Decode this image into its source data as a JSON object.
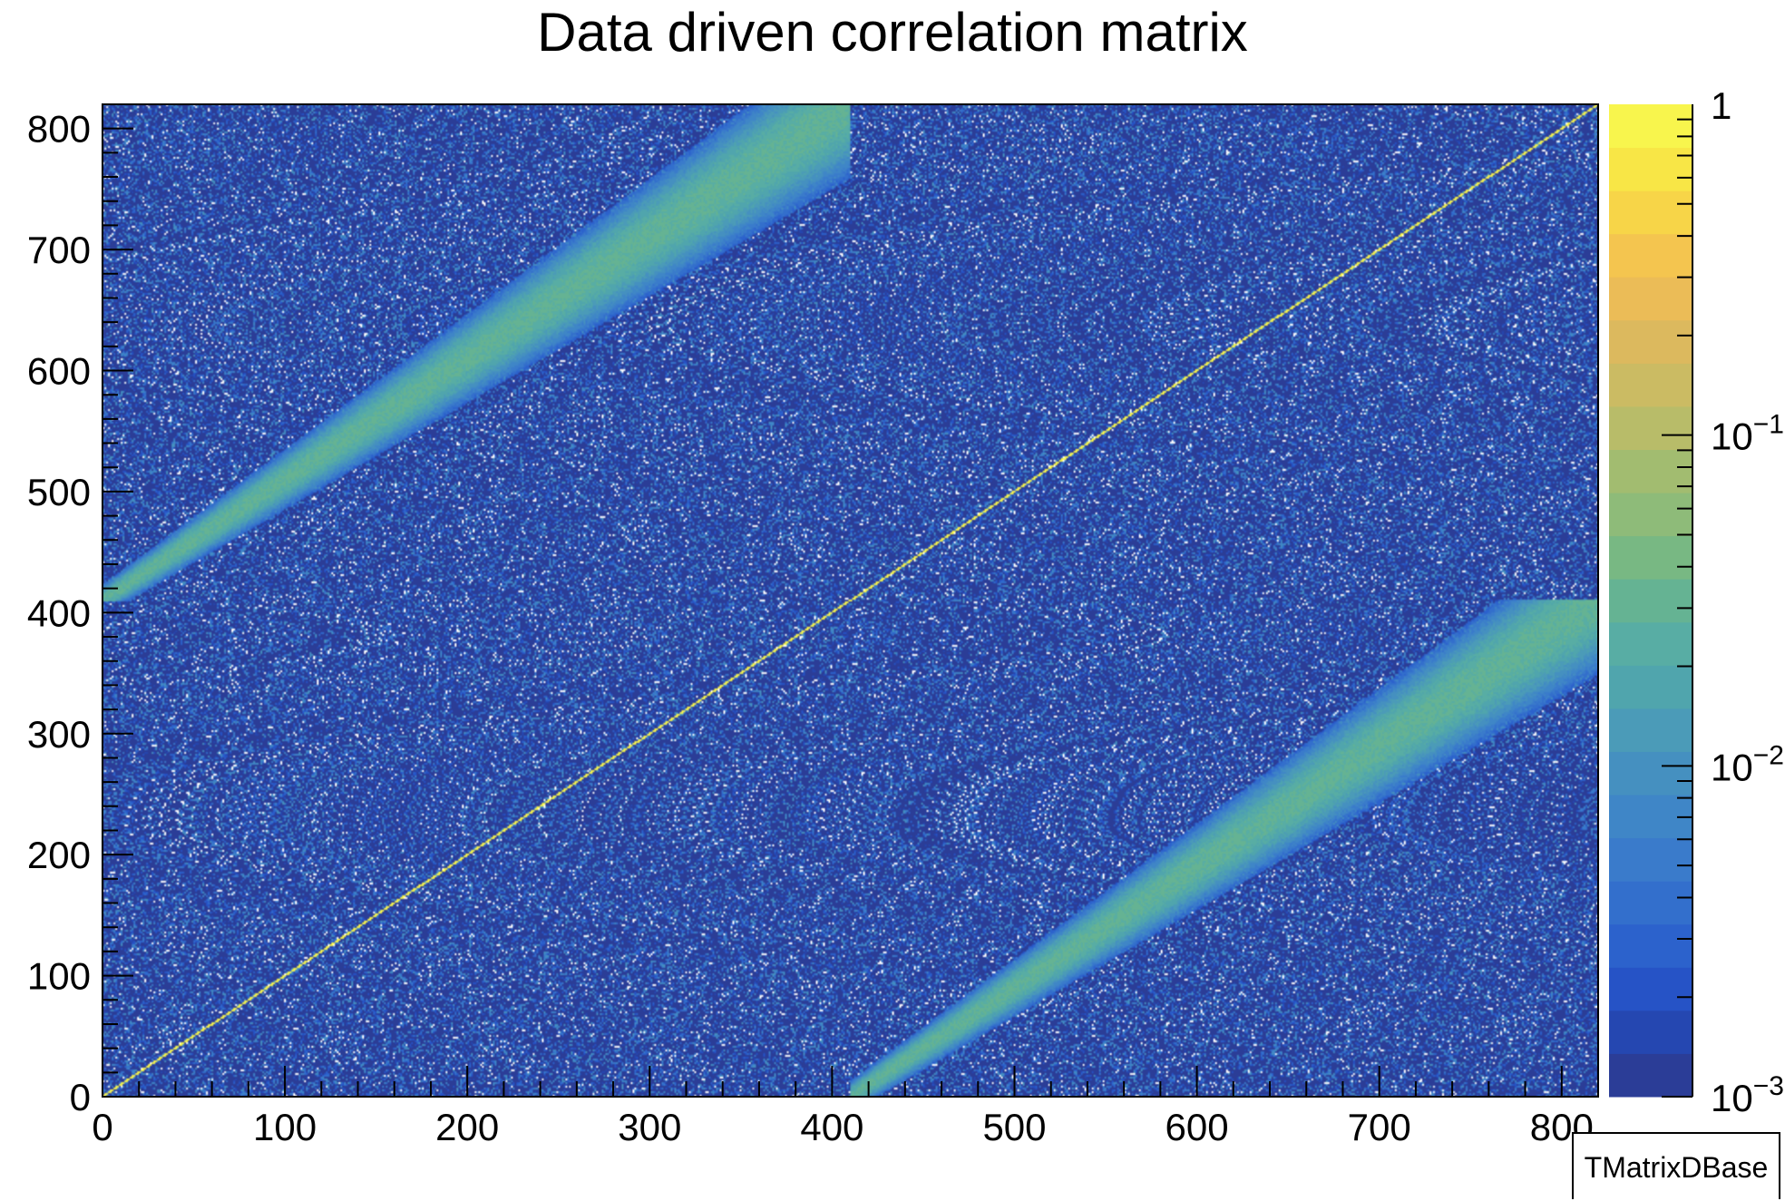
{
  "chart_data": {
    "type": "heatmap",
    "title": "Data driven correlation matrix",
    "xlabel": "",
    "ylabel": "",
    "xlim": [
      0,
      820
    ],
    "ylim": [
      0,
      820
    ],
    "x_ticks": [
      "0",
      "100",
      "200",
      "300",
      "400",
      "500",
      "600",
      "700",
      "800"
    ],
    "y_ticks": [
      "0",
      "100",
      "200",
      "300",
      "400",
      "500",
      "600",
      "700",
      "800"
    ],
    "z_scale": "log",
    "zlim": [
      0.001,
      1
    ],
    "palette_ticks": [
      {
        "value": 1,
        "base": "1",
        "exp": ""
      },
      {
        "value": 0.1,
        "base": "10",
        "exp": "−1"
      },
      {
        "value": 0.01,
        "base": "10",
        "exp": "−2"
      },
      {
        "value": 0.001,
        "base": "10",
        "exp": "−3"
      }
    ],
    "palette_colors": [
      "#2b3d97",
      "#2547b1",
      "#2653c6",
      "#2c62cc",
      "#336fcc",
      "#3a7bcb",
      "#3f86c7",
      "#4590c0",
      "#4b9bb8",
      "#50a5ad",
      "#58ada4",
      "#65b393",
      "#78b883",
      "#8ebb79",
      "#a2bc70",
      "#b8bc69",
      "#cbbb63",
      "#dcb95e",
      "#ebbc57",
      "#f4c54f",
      "#f7d548",
      "#f8e646",
      "#f8f54d"
    ],
    "features": [
      {
        "name": "diagonal",
        "x": [
          0,
          820
        ],
        "y": [
          0,
          820
        ],
        "value": 1
      },
      {
        "name": "upper-off-diagonal-band",
        "x": [
          0,
          410
        ],
        "y": [
          410,
          820
        ],
        "value": 0.03
      },
      {
        "name": "lower-off-diagonal-band",
        "x": [
          410,
          820
        ],
        "y": [
          0,
          410
        ],
        "value": 0.03
      }
    ],
    "background_range": [
      0.001,
      0.01
    ]
  },
  "stats_box": {
    "label": "TMatrixDBase"
  }
}
